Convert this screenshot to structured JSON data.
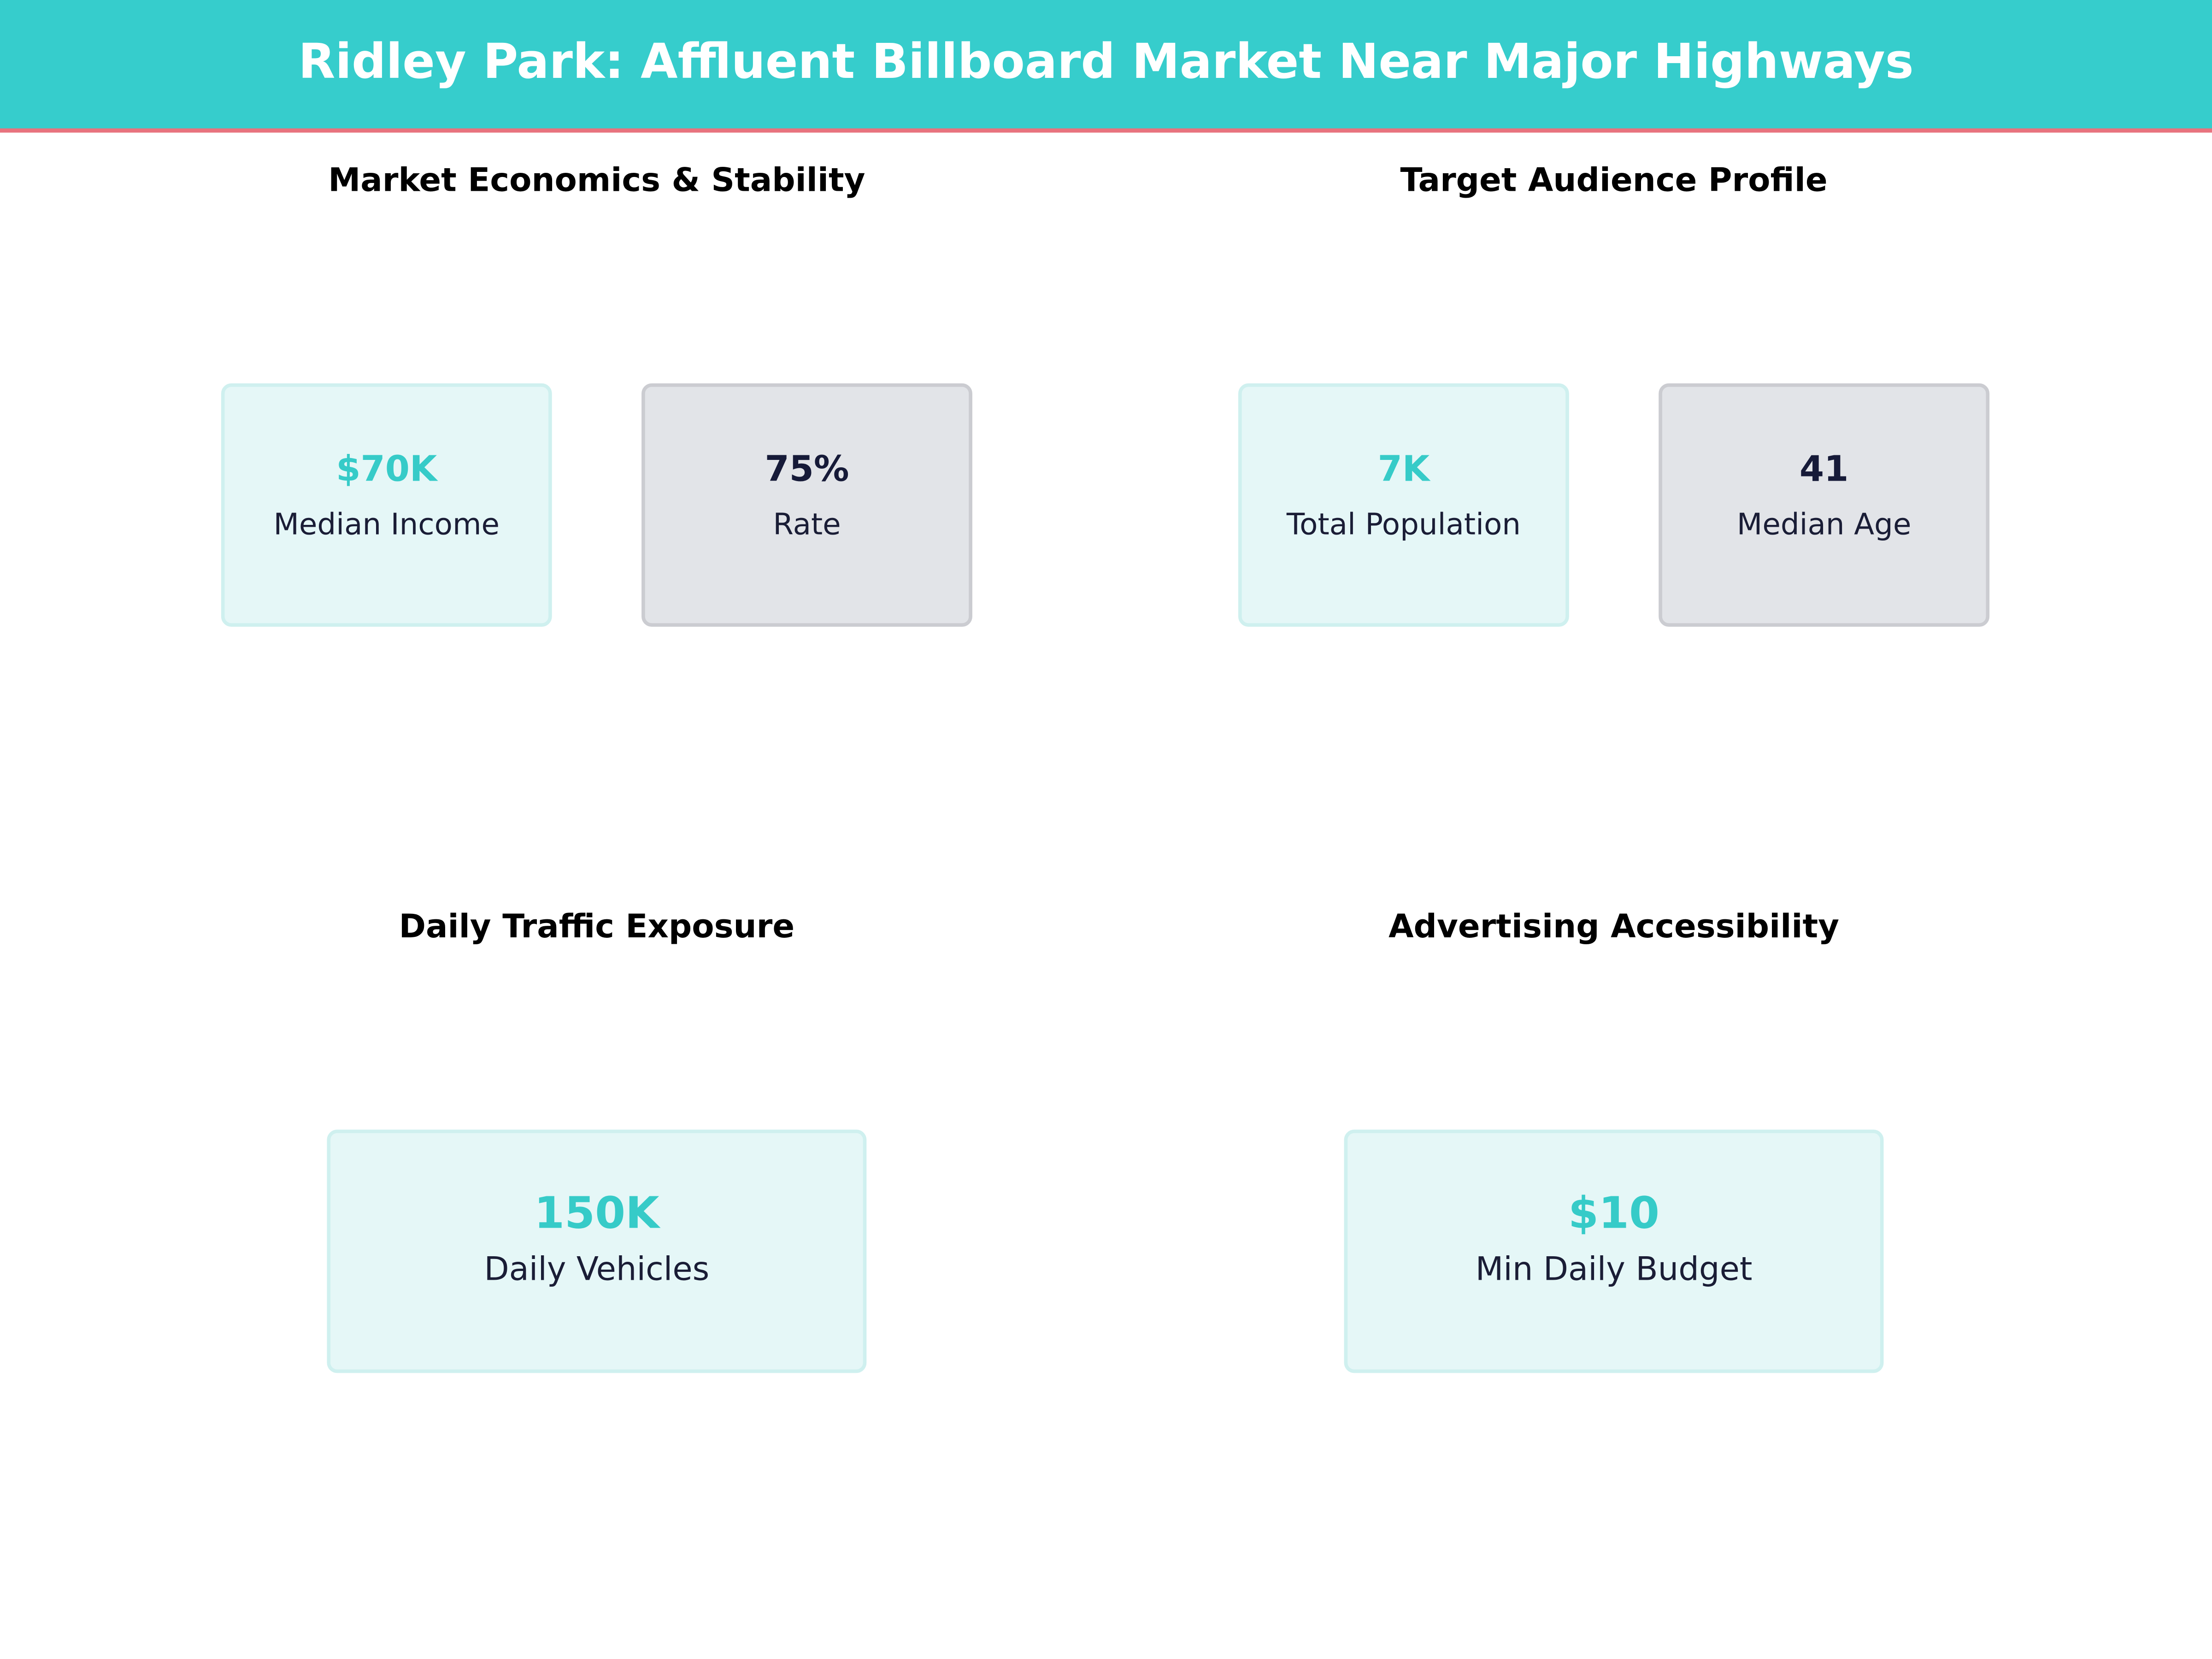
{
  "header": {
    "title": "Ridley Park: Affluent Billboard Market Near Major Highways"
  },
  "panels": [
    {
      "title": "Market Economics & Stability",
      "cards": [
        {
          "value": "$70K",
          "label": "Median Income",
          "color": "#36cbc8"
        },
        {
          "value": "75%",
          "label": "Rate",
          "color": "#161a38"
        }
      ]
    },
    {
      "title": "Target Audience Profile",
      "cards": [
        {
          "value": "7K",
          "label": "Total Population",
          "color": "#36cbc8"
        },
        {
          "value": "41",
          "label": "Median Age",
          "color": "#161a38"
        }
      ]
    },
    {
      "title": "Daily Traffic Exposure",
      "cards": [
        {
          "value": "150K",
          "label": "Daily Vehicles",
          "color": "#36cbc8"
        }
      ]
    },
    {
      "title": "Advertising Accessibility",
      "cards": [
        {
          "value": "$10",
          "label": "Min Daily Budget",
          "color": "#36cbc8"
        }
      ]
    }
  ]
}
